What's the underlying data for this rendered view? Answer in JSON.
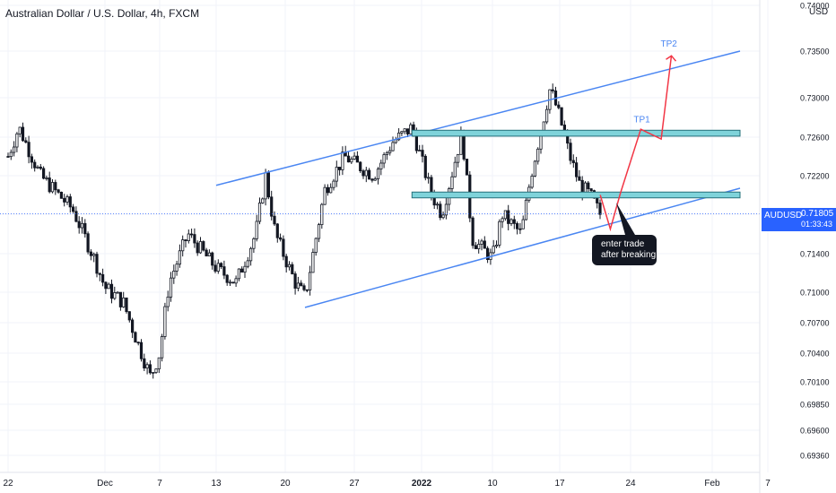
{
  "header": {
    "title": "Australian Dollar / U.S. Dollar, 4h, FXCM",
    "currency": "USD"
  },
  "price_label": {
    "symbol": "AUDUSD",
    "price": "0.71805",
    "countdown": "01:33:43"
  },
  "annotation": {
    "line1": "enter trade",
    "line2": "after breaking"
  },
  "colors": {
    "candle": "#131722",
    "trend": "#4a86f2",
    "zone_fill": "#7fd3da",
    "zone_border": "#26707a",
    "projection": "#f23645",
    "label_bg": "#2962ff",
    "target_text": "#4a86f2"
  },
  "chart_data": {
    "type": "candlestick",
    "y_axis": {
      "ticks": [
        "0.74000",
        "0.73500",
        "0.73000",
        "0.72600",
        "0.72200",
        "0.71800",
        "0.71400",
        "0.71000",
        "0.70700",
        "0.70400",
        "0.70100",
        "0.69850",
        "0.69600",
        "0.69360"
      ],
      "ylim": [
        0.6925,
        0.7402
      ]
    },
    "x_axis": {
      "ticks": [
        "22",
        "Dec",
        "7",
        "13",
        "20",
        "27",
        "2022",
        "10",
        "17",
        "24",
        "Feb",
        "7"
      ]
    },
    "price_path": [
      {
        "t": "Nov 22",
        "p": 0.724
      },
      {
        "t": "Nov 23",
        "p": 0.727
      },
      {
        "t": "Nov 25",
        "p": 0.722
      },
      {
        "t": "Nov 28",
        "p": 0.7185
      },
      {
        "t": "Nov 30",
        "p": 0.7135
      },
      {
        "t": "Dec 01",
        "p": 0.7105
      },
      {
        "t": "Dec 03",
        "p": 0.709
      },
      {
        "t": "Dec 06",
        "p": 0.7015
      },
      {
        "t": "Dec 07",
        "p": 0.704
      },
      {
        "t": "Dec 08",
        "p": 0.711
      },
      {
        "t": "Dec 10",
        "p": 0.716
      },
      {
        "t": "Dec 13",
        "p": 0.7125
      },
      {
        "t": "Dec 15",
        "p": 0.711
      },
      {
        "t": "Dec 17",
        "p": 0.716
      },
      {
        "t": "Dec 18",
        "p": 0.722
      },
      {
        "t": "Dec 19",
        "p": 0.716
      },
      {
        "t": "Dec 21",
        "p": 0.711
      },
      {
        "t": "Dec 22",
        "p": 0.7095
      },
      {
        "t": "Dec 24",
        "p": 0.7205
      },
      {
        "t": "Dec 26",
        "p": 0.724
      },
      {
        "t": "Dec 29",
        "p": 0.722
      },
      {
        "t": "Dec 31",
        "p": 0.7255
      },
      {
        "t": "Jan 02",
        "p": 0.727
      },
      {
        "t": "Jan 04",
        "p": 0.72
      },
      {
        "t": "Jan 05",
        "p": 0.718
      },
      {
        "t": "Jan 07",
        "p": 0.7265
      },
      {
        "t": "Jan 08",
        "p": 0.7155
      },
      {
        "t": "Jan 10",
        "p": 0.7135
      },
      {
        "t": "Jan 11",
        "p": 0.718
      },
      {
        "t": "Jan 13",
        "p": 0.716
      },
      {
        "t": "Jan 14",
        "p": 0.722
      },
      {
        "t": "Jan 16",
        "p": 0.731
      },
      {
        "t": "Jan 17",
        "p": 0.728
      },
      {
        "t": "Jan 18",
        "p": 0.724
      },
      {
        "t": "Jan 19",
        "p": 0.721
      },
      {
        "t": "Jan 20",
        "p": 0.72
      },
      {
        "t": "Jan 21",
        "p": 0.718
      }
    ],
    "trend_lines": [
      {
        "from": {
          "t": "Dec 13",
          "p": 0.721
        },
        "to": {
          "t": "Feb 04",
          "p": 0.735
        }
      },
      {
        "from": {
          "t": "Dec 22",
          "p": 0.7085
        },
        "to": {
          "t": "Feb 04",
          "p": 0.7207
        }
      }
    ],
    "zones": [
      {
        "from": "Jan 02",
        "to": "Feb 04",
        "low": 0.7261,
        "high": 0.7267
      },
      {
        "from": "Jan 02",
        "to": "Feb 04",
        "low": 0.7197,
        "high": 0.7203
      }
    ],
    "projection": [
      {
        "t": "Jan 21",
        "p": 0.72
      },
      {
        "t": "Jan 22",
        "p": 0.7165
      },
      {
        "t": "Jan 23",
        "p": 0.7202
      },
      {
        "t": "Jan 25",
        "p": 0.7268
      },
      {
        "t": "Jan 27",
        "p": 0.7258
      },
      {
        "t": "Jan 28",
        "p": 0.7345
      }
    ],
    "targets": [
      "TP1",
      "TP2"
    ],
    "last_price": 0.71805
  }
}
